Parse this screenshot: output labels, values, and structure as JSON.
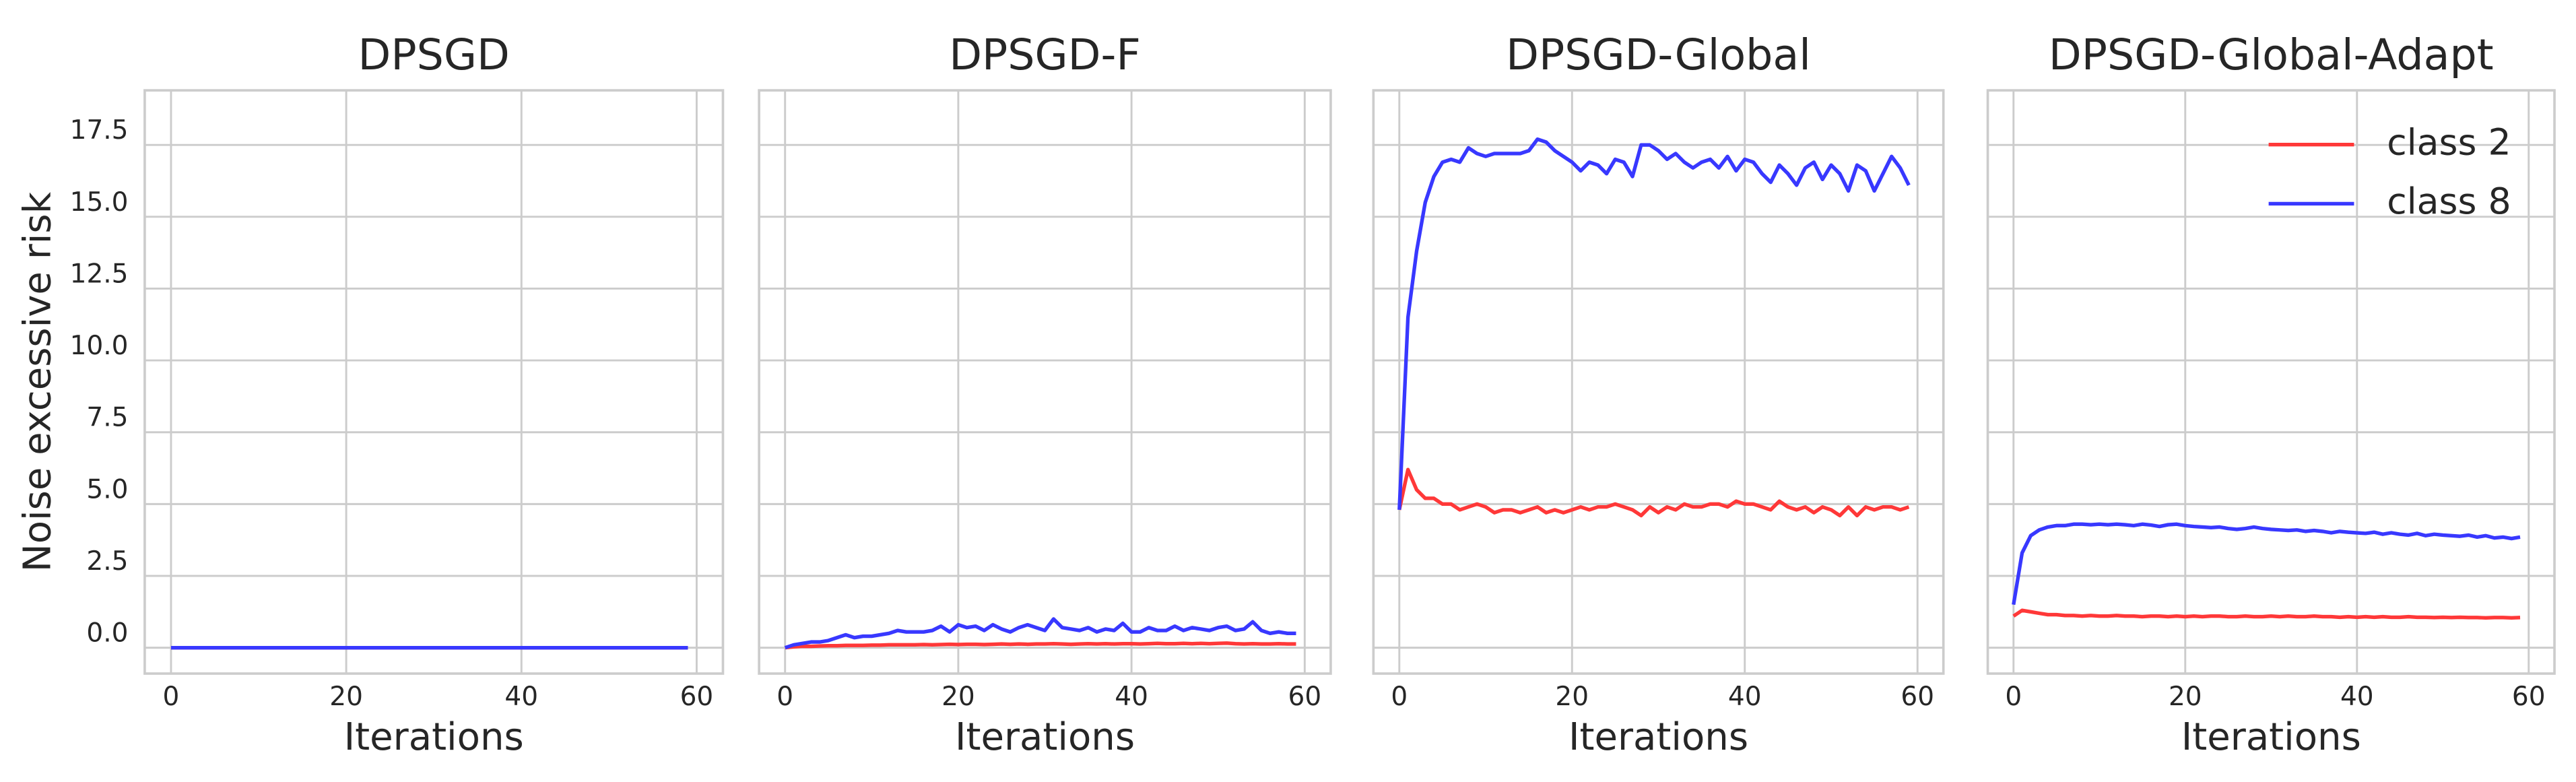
{
  "chart_data": [
    {
      "type": "line",
      "title": "DPSGD",
      "xlabel": "Iterations",
      "ylabel": "Noise excessive risk",
      "x": [
        0,
        1,
        2,
        3,
        4,
        5,
        6,
        7,
        8,
        9,
        10,
        11,
        12,
        13,
        14,
        15,
        16,
        17,
        18,
        19,
        20,
        21,
        22,
        23,
        24,
        25,
        26,
        27,
        28,
        29,
        30,
        31,
        32,
        33,
        34,
        35,
        36,
        37,
        38,
        39,
        40,
        41,
        42,
        43,
        44,
        45,
        46,
        47,
        48,
        49,
        50,
        51,
        52,
        53,
        54,
        55,
        56,
        57,
        58,
        59
      ],
      "series": [
        {
          "name": "class 2",
          "color": "#ff3838",
          "values": [
            0,
            0,
            0,
            0,
            0,
            0,
            0,
            0,
            0,
            0,
            0,
            0,
            0,
            0,
            0,
            0,
            0,
            0,
            0,
            0,
            0,
            0,
            0,
            0,
            0,
            0,
            0,
            0,
            0,
            0,
            0,
            0,
            0,
            0,
            0,
            0,
            0,
            0,
            0,
            0,
            0,
            0,
            0,
            0,
            0,
            0,
            0,
            0,
            0,
            0,
            0,
            0,
            0,
            0,
            0,
            0,
            0,
            0,
            0,
            0
          ]
        },
        {
          "name": "class 8",
          "color": "#3838ff",
          "values": [
            0,
            0,
            0,
            0,
            0,
            0,
            0,
            0,
            0,
            0,
            0,
            0,
            0,
            0,
            0,
            0,
            0,
            0,
            0,
            0,
            0,
            0,
            0,
            0,
            0,
            0,
            0,
            0,
            0,
            0,
            0,
            0,
            0,
            0,
            0,
            0,
            0,
            0,
            0,
            0,
            0,
            0,
            0,
            0,
            0,
            0,
            0,
            0,
            0,
            0,
            0,
            0,
            0,
            0,
            0,
            0,
            0,
            0,
            0,
            0
          ]
        }
      ],
      "xlim": [
        -3,
        63
      ],
      "xticks": [
        0,
        20,
        40,
        60
      ],
      "ylim": [
        -0.9,
        19.4
      ],
      "yticks": [
        {
          "value": 0,
          "label": "0.0"
        },
        2.5,
        {
          "value": 5,
          "label": "5.0"
        },
        7.5,
        {
          "value": 10,
          "label": "10.0"
        },
        12.5,
        {
          "value": 15,
          "label": "15.0"
        },
        17.5
      ],
      "grid": true
    },
    {
      "type": "line",
      "title": "DPSGD-F",
      "xlabel": "Iterations",
      "x": [
        0,
        1,
        2,
        3,
        4,
        5,
        6,
        7,
        8,
        9,
        10,
        11,
        12,
        13,
        14,
        15,
        16,
        17,
        18,
        19,
        20,
        21,
        22,
        23,
        24,
        25,
        26,
        27,
        28,
        29,
        30,
        31,
        32,
        33,
        34,
        35,
        36,
        37,
        38,
        39,
        40,
        41,
        42,
        43,
        44,
        45,
        46,
        47,
        48,
        49,
        50,
        51,
        52,
        53,
        54,
        55,
        56,
        57,
        58,
        59
      ],
      "series": [
        {
          "name": "class 2",
          "color": "#ff3838",
          "values": [
            0,
            0.03,
            0.05,
            0.05,
            0.06,
            0.07,
            0.07,
            0.08,
            0.08,
            0.08,
            0.09,
            0.09,
            0.1,
            0.1,
            0.1,
            0.1,
            0.11,
            0.1,
            0.11,
            0.12,
            0.11,
            0.12,
            0.12,
            0.11,
            0.12,
            0.13,
            0.12,
            0.13,
            0.12,
            0.13,
            0.13,
            0.14,
            0.13,
            0.12,
            0.13,
            0.14,
            0.13,
            0.14,
            0.13,
            0.14,
            0.14,
            0.13,
            0.14,
            0.15,
            0.14,
            0.14,
            0.15,
            0.14,
            0.15,
            0.14,
            0.15,
            0.16,
            0.14,
            0.13,
            0.14,
            0.13,
            0.13,
            0.14,
            0.13,
            0.13
          ]
        },
        {
          "name": "class 8",
          "color": "#3838ff",
          "values": [
            0,
            0.1,
            0.15,
            0.2,
            0.2,
            0.25,
            0.35,
            0.45,
            0.35,
            0.4,
            0.4,
            0.45,
            0.5,
            0.6,
            0.55,
            0.55,
            0.55,
            0.6,
            0.75,
            0.55,
            0.8,
            0.7,
            0.75,
            0.6,
            0.8,
            0.65,
            0.55,
            0.7,
            0.8,
            0.7,
            0.6,
            1.0,
            0.7,
            0.65,
            0.6,
            0.7,
            0.55,
            0.65,
            0.6,
            0.85,
            0.55,
            0.55,
            0.7,
            0.6,
            0.6,
            0.75,
            0.6,
            0.7,
            0.65,
            0.6,
            0.7,
            0.75,
            0.6,
            0.65,
            0.9,
            0.6,
            0.5,
            0.55,
            0.5,
            0.5
          ]
        }
      ],
      "xlim": [
        -3,
        63
      ],
      "xticks": [
        0,
        20,
        40,
        60
      ],
      "ylim": [
        -0.9,
        19.4
      ],
      "yticks": [
        {
          "value": 0,
          "label": "0.0"
        },
        2.5,
        {
          "value": 5,
          "label": "5.0"
        },
        7.5,
        {
          "value": 10,
          "label": "10.0"
        },
        12.5,
        {
          "value": 15,
          "label": "15.0"
        },
        17.5
      ],
      "grid": true
    },
    {
      "type": "line",
      "title": "DPSGD-Global",
      "xlabel": "Iterations",
      "x": [
        0,
        1,
        2,
        3,
        4,
        5,
        6,
        7,
        8,
        9,
        10,
        11,
        12,
        13,
        14,
        15,
        16,
        17,
        18,
        19,
        20,
        21,
        22,
        23,
        24,
        25,
        26,
        27,
        28,
        29,
        30,
        31,
        32,
        33,
        34,
        35,
        36,
        37,
        38,
        39,
        40,
        41,
        42,
        43,
        44,
        45,
        46,
        47,
        48,
        49,
        50,
        51,
        52,
        53,
        54,
        55,
        56,
        57,
        58,
        59
      ],
      "series": [
        {
          "name": "class 2",
          "color": "#ff3838",
          "values": [
            4.8,
            6.2,
            5.5,
            5.2,
            5.2,
            5.0,
            5.0,
            4.8,
            4.9,
            5.0,
            4.9,
            4.7,
            4.8,
            4.8,
            4.7,
            4.8,
            4.9,
            4.7,
            4.8,
            4.7,
            4.8,
            4.9,
            4.8,
            4.9,
            4.9,
            5.0,
            4.9,
            4.8,
            4.6,
            4.9,
            4.7,
            4.9,
            4.8,
            5.0,
            4.9,
            4.9,
            5.0,
            5.0,
            4.9,
            5.1,
            5.0,
            5.0,
            4.9,
            4.8,
            5.1,
            4.9,
            4.8,
            4.9,
            4.7,
            4.9,
            4.8,
            4.6,
            4.9,
            4.6,
            4.9,
            4.8,
            4.9,
            4.9,
            4.8,
            4.9
          ]
        },
        {
          "name": "class 8",
          "color": "#3838ff",
          "values": [
            4.8,
            11.5,
            13.8,
            15.5,
            16.4,
            16.9,
            17.0,
            16.9,
            17.4,
            17.2,
            17.1,
            17.2,
            17.2,
            17.2,
            17.2,
            17.3,
            17.7,
            17.6,
            17.3,
            17.1,
            16.9,
            16.6,
            16.9,
            16.8,
            16.5,
            17.0,
            16.9,
            16.4,
            17.5,
            17.5,
            17.3,
            17.0,
            17.2,
            16.9,
            16.7,
            16.9,
            17.0,
            16.7,
            17.1,
            16.6,
            17.0,
            16.9,
            16.5,
            16.2,
            16.8,
            16.5,
            16.1,
            16.7,
            16.9,
            16.3,
            16.8,
            16.5,
            15.9,
            16.8,
            16.6,
            15.9,
            16.5,
            17.1,
            16.7,
            16.1
          ]
        }
      ],
      "xlim": [
        -3,
        63
      ],
      "xticks": [
        0,
        20,
        40,
        60
      ],
      "ylim": [
        -0.9,
        19.4
      ],
      "yticks": [
        {
          "value": 0,
          "label": "0.0"
        },
        2.5,
        {
          "value": 5,
          "label": "5.0"
        },
        7.5,
        {
          "value": 10,
          "label": "10.0"
        },
        12.5,
        {
          "value": 15,
          "label": "15.0"
        },
        17.5
      ],
      "grid": true
    },
    {
      "type": "line",
      "title": "DPSGD-Global-Adapt",
      "xlabel": "Iterations",
      "x": [
        0,
        1,
        2,
        3,
        4,
        5,
        6,
        7,
        8,
        9,
        10,
        11,
        12,
        13,
        14,
        15,
        16,
        17,
        18,
        19,
        20,
        21,
        22,
        23,
        24,
        25,
        26,
        27,
        28,
        29,
        30,
        31,
        32,
        33,
        34,
        35,
        36,
        37,
        38,
        39,
        40,
        41,
        42,
        43,
        44,
        45,
        46,
        47,
        48,
        49,
        50,
        51,
        52,
        53,
        54,
        55,
        56,
        57,
        58,
        59
      ],
      "series": [
        {
          "name": "class 2",
          "color": "#ff3838",
          "values": [
            1.1,
            1.3,
            1.25,
            1.2,
            1.15,
            1.15,
            1.12,
            1.12,
            1.1,
            1.12,
            1.1,
            1.1,
            1.12,
            1.1,
            1.1,
            1.08,
            1.1,
            1.1,
            1.08,
            1.1,
            1.08,
            1.1,
            1.08,
            1.1,
            1.1,
            1.08,
            1.08,
            1.1,
            1.08,
            1.08,
            1.1,
            1.08,
            1.1,
            1.08,
            1.08,
            1.1,
            1.08,
            1.08,
            1.06,
            1.08,
            1.06,
            1.08,
            1.06,
            1.08,
            1.06,
            1.06,
            1.08,
            1.06,
            1.06,
            1.05,
            1.06,
            1.05,
            1.06,
            1.05,
            1.05,
            1.04,
            1.05,
            1.05,
            1.04,
            1.05
          ]
        },
        {
          "name": "class 8",
          "color": "#3838ff",
          "values": [
            1.5,
            3.3,
            3.9,
            4.1,
            4.2,
            4.25,
            4.25,
            4.3,
            4.3,
            4.28,
            4.3,
            4.28,
            4.3,
            4.28,
            4.25,
            4.3,
            4.27,
            4.22,
            4.28,
            4.3,
            4.25,
            4.22,
            4.2,
            4.18,
            4.2,
            4.15,
            4.12,
            4.15,
            4.2,
            4.15,
            4.12,
            4.1,
            4.08,
            4.1,
            4.05,
            4.08,
            4.05,
            4.0,
            4.05,
            4.02,
            4.0,
            3.98,
            4.02,
            3.95,
            4.0,
            3.95,
            3.92,
            3.98,
            3.9,
            3.95,
            3.92,
            3.9,
            3.88,
            3.92,
            3.85,
            3.9,
            3.82,
            3.85,
            3.8,
            3.85
          ]
        }
      ],
      "xlim": [
        -3,
        63
      ],
      "xticks": [
        0,
        20,
        40,
        60
      ],
      "ylim": [
        -0.9,
        19.4
      ],
      "yticks": [
        {
          "value": 0,
          "label": "0.0"
        },
        2.5,
        {
          "value": 5,
          "label": "5.0"
        },
        7.5,
        {
          "value": 10,
          "label": "10.0"
        },
        12.5,
        {
          "value": 15,
          "label": "15.0"
        },
        17.5
      ],
      "grid": true,
      "legend": "upper right"
    }
  ]
}
